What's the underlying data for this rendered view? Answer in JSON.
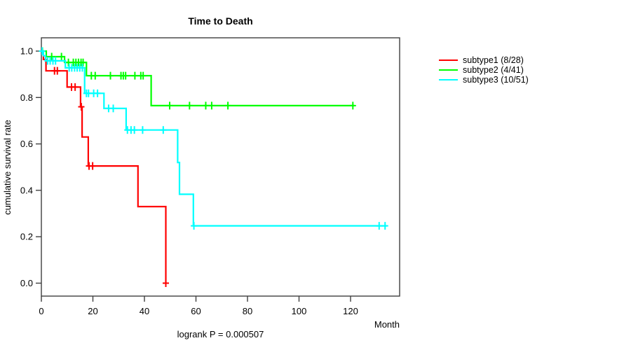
{
  "header": {
    "title": "Time to Death"
  },
  "footer": {
    "annotation": "logrank P = 0.000507",
    "x_axis_title": "Month"
  },
  "axes": {
    "y_axis_title": "cumulative survival rate",
    "x_tick_values": [
      0,
      20,
      40,
      60,
      80,
      100,
      120
    ],
    "y_tick_values": [
      0.0,
      0.2,
      0.4,
      0.6,
      0.8,
      1.0
    ],
    "frame_color": "#3f3f3f"
  },
  "legend": {
    "position": "right",
    "items": [
      {
        "label": "subtype1 (8/28)",
        "color": "#FF0000"
      },
      {
        "label": "subtype2 (4/41)",
        "color": "#00FF00"
      },
      {
        "label": "subtype3 (10/51)",
        "color": "#00FFFF"
      }
    ]
  },
  "chart_data": {
    "type": "line",
    "subtype": "kaplan-meier-step",
    "title": "Time to Death",
    "xlabel": "Month",
    "ylabel": "cumulative survival rate",
    "annotation": "logrank P = 0.000507",
    "grid": false,
    "legend_position": "right",
    "xlim": [
      0,
      139.05
    ],
    "ylim": [
      -0.0558,
      1.0573
    ],
    "x_ticks": [
      0,
      20,
      40,
      60,
      80,
      100,
      120
    ],
    "y_ticks": [
      0.0,
      0.2,
      0.4,
      0.6,
      0.8,
      1.0
    ],
    "series": [
      {
        "name": "subtype1",
        "events_ratio": "8/28",
        "color": "#FF0000",
        "steps": [
          [
            0,
            1.0
          ],
          [
            0.8,
            0.964
          ],
          [
            1.8,
            0.915
          ],
          [
            10,
            0.845
          ],
          [
            15.2,
            0.76
          ],
          [
            15.8,
            0.63
          ],
          [
            18.2,
            0.505
          ],
          [
            37.5,
            0.33
          ],
          [
            48.3,
            0.0
          ]
        ],
        "end_time": 48.3,
        "censor_marks": [
          [
            5.1,
            0.915
          ],
          [
            6.2,
            0.915
          ],
          [
            11.7,
            0.845
          ],
          [
            13.1,
            0.845
          ],
          [
            15.5,
            0.76
          ],
          [
            18.5,
            0.505
          ],
          [
            19.9,
            0.505
          ],
          [
            48.3,
            0.0
          ]
        ]
      },
      {
        "name": "subtype2",
        "events_ratio": "4/41",
        "color": "#00FF00",
        "steps": [
          [
            0,
            1.0
          ],
          [
            1.9,
            0.976
          ],
          [
            9,
            0.951
          ],
          [
            17.5,
            0.894
          ],
          [
            42.6,
            0.765
          ]
        ],
        "end_time": 121.5,
        "censor_marks": [
          [
            0.4,
            1.0
          ],
          [
            4,
            0.976
          ],
          [
            7.8,
            0.976
          ],
          [
            10.5,
            0.951
          ],
          [
            12.4,
            0.951
          ],
          [
            13.4,
            0.951
          ],
          [
            14.4,
            0.951
          ],
          [
            15.4,
            0.951
          ],
          [
            16.2,
            0.951
          ],
          [
            19.4,
            0.894
          ],
          [
            20.9,
            0.894
          ],
          [
            26.8,
            0.894
          ],
          [
            30.9,
            0.894
          ],
          [
            31.8,
            0.894
          ],
          [
            32.7,
            0.894
          ],
          [
            36.3,
            0.894
          ],
          [
            38.6,
            0.894
          ],
          [
            39.5,
            0.894
          ],
          [
            49.8,
            0.765
          ],
          [
            57.5,
            0.765
          ],
          [
            63.8,
            0.765
          ],
          [
            66.1,
            0.765
          ],
          [
            72.4,
            0.765
          ],
          [
            120.9,
            0.765
          ]
        ]
      },
      {
        "name": "subtype3",
        "events_ratio": "10/51",
        "color": "#00FFFF",
        "steps": [
          [
            0,
            1.0
          ],
          [
            0.8,
            0.98
          ],
          [
            1.6,
            0.958
          ],
          [
            9.3,
            0.928
          ],
          [
            16.8,
            0.818
          ],
          [
            24.3,
            0.753
          ],
          [
            32.9,
            0.66
          ],
          [
            52.9,
            0.52
          ],
          [
            53.6,
            0.383
          ],
          [
            59,
            0.247
          ]
        ],
        "end_time": 134,
        "censor_marks": [
          [
            0.3,
            1.0
          ],
          [
            2.4,
            0.958
          ],
          [
            3.4,
            0.958
          ],
          [
            4.5,
            0.958
          ],
          [
            5.5,
            0.958
          ],
          [
            10.8,
            0.928
          ],
          [
            11.8,
            0.928
          ],
          [
            12.9,
            0.928
          ],
          [
            13.9,
            0.928
          ],
          [
            14.9,
            0.928
          ],
          [
            15.9,
            0.928
          ],
          [
            17.5,
            0.818
          ],
          [
            18.3,
            0.818
          ],
          [
            20.3,
            0.818
          ],
          [
            21.8,
            0.818
          ],
          [
            26.1,
            0.753
          ],
          [
            27.9,
            0.753
          ],
          [
            33.4,
            0.66
          ],
          [
            34.8,
            0.66
          ],
          [
            36.1,
            0.66
          ],
          [
            39.3,
            0.66
          ],
          [
            47.3,
            0.66
          ],
          [
            59.2,
            0.247
          ],
          [
            131.1,
            0.247
          ],
          [
            133.4,
            0.247
          ]
        ]
      }
    ]
  }
}
